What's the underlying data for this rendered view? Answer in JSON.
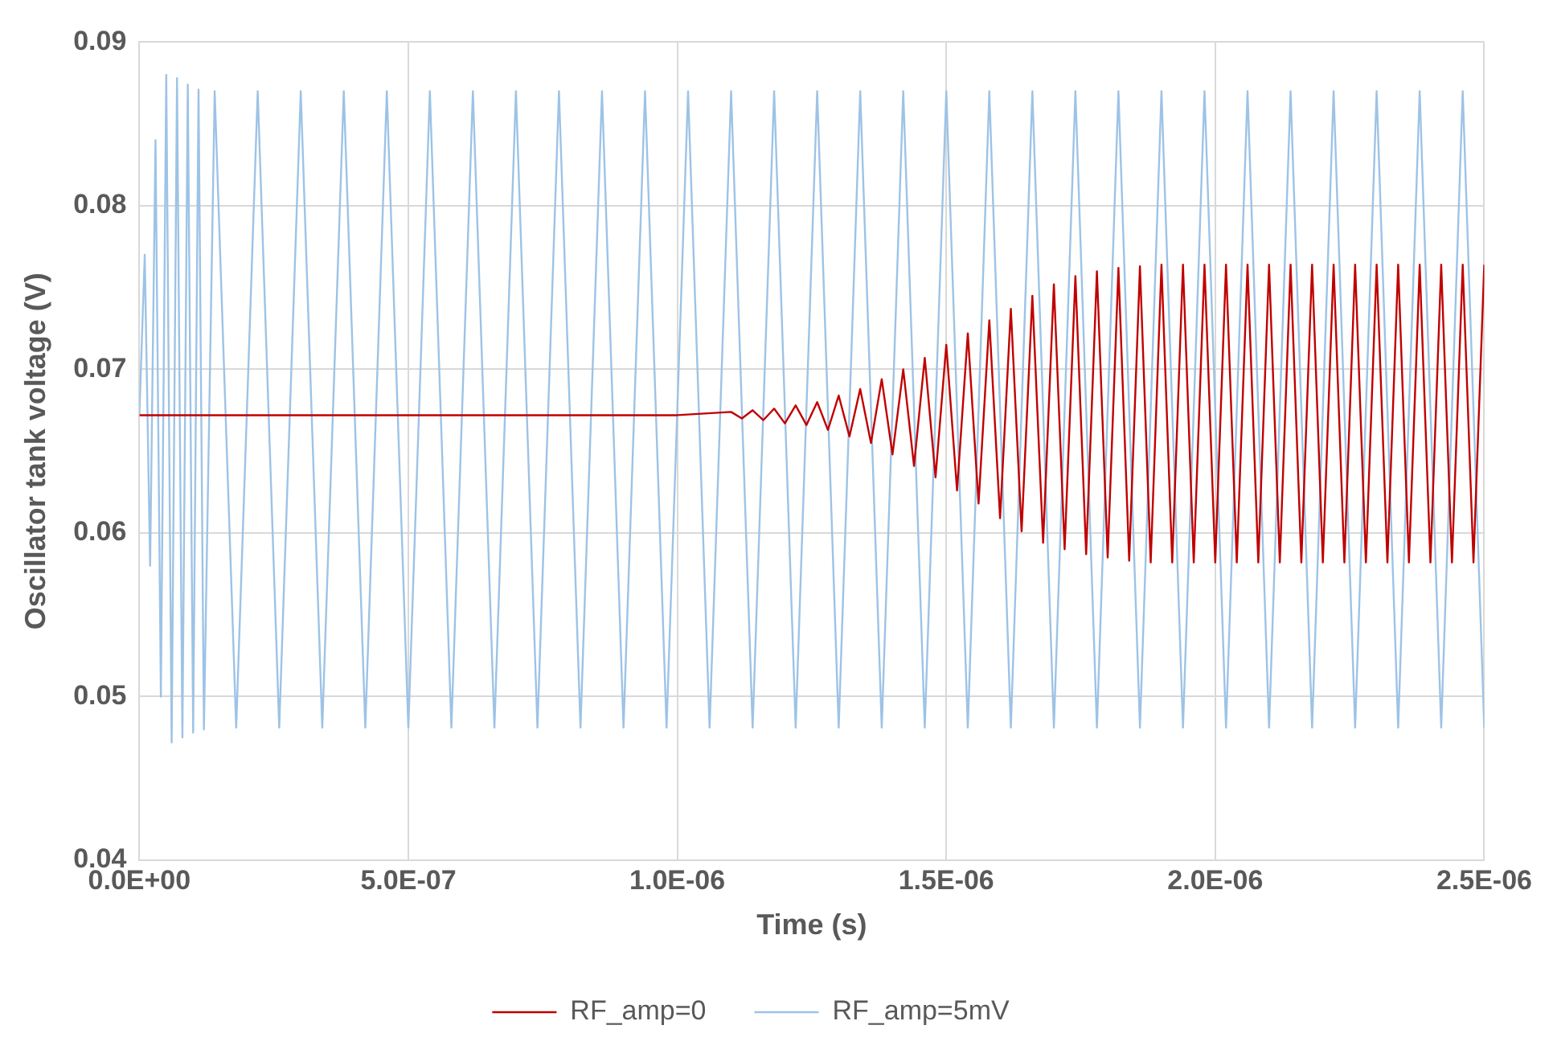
{
  "chart_data": {
    "type": "line",
    "xlabel": "Time (s)",
    "ylabel": "Oscillator tank voltage (V)",
    "xlim": [
      0,
      2.5e-06
    ],
    "xticks": [
      {
        "value": 0,
        "label": "0.0E+00"
      },
      {
        "value": 5e-07,
        "label": "5.0E-07"
      },
      {
        "value": 1e-06,
        "label": "1.0E-06"
      },
      {
        "value": 1.5e-06,
        "label": "1.5E-06"
      },
      {
        "value": 2e-06,
        "label": "2.0E-06"
      },
      {
        "value": 2.5e-06,
        "label": "2.5E-06"
      }
    ],
    "ylim": [
      0.04,
      0.09
    ],
    "yticks": [
      0.04,
      0.05,
      0.06,
      0.07,
      0.08,
      0.09
    ],
    "grid": true,
    "legend": "bottom",
    "marker": "none",
    "series": [
      {
        "name": "RF_amp=0",
        "color": "#c00000",
        "x": [
          0,
          1e-06,
          1.1e-06,
          1.12e-06,
          1.14e-06,
          1.16e-06,
          1.18e-06,
          1.2e-06,
          1.22e-06,
          1.24e-06,
          1.26e-06,
          1.28e-06,
          1.3e-06,
          1.32e-06,
          1.34e-06,
          1.36e-06,
          1.38e-06,
          1.4e-06,
          1.42e-06,
          1.44e-06,
          1.46e-06,
          1.48e-06,
          1.5e-06,
          1.52e-06,
          1.54e-06,
          1.56e-06,
          1.58e-06,
          1.6e-06,
          1.62e-06,
          1.64e-06,
          1.66e-06,
          1.68e-06,
          1.7e-06,
          1.72e-06,
          1.74e-06,
          1.76e-06,
          1.78e-06,
          1.8e-06,
          1.82e-06,
          1.84e-06,
          1.86e-06,
          1.88e-06,
          1.9e-06,
          1.92e-06,
          1.94e-06,
          1.96e-06,
          1.98e-06,
          2e-06,
          2.02e-06,
          2.04e-06,
          2.06e-06,
          2.08e-06,
          2.1e-06,
          2.12e-06,
          2.14e-06,
          2.16e-06,
          2.18e-06,
          2.2e-06,
          2.22e-06,
          2.24e-06,
          2.26e-06,
          2.28e-06,
          2.3e-06,
          2.32e-06,
          2.34e-06,
          2.36e-06,
          2.38e-06,
          2.4e-06,
          2.42e-06,
          2.44e-06,
          2.46e-06,
          2.48e-06,
          2.5e-06
        ],
        "values": [
          0.0672,
          0.0672,
          0.0674,
          0.067,
          0.0675,
          0.0669,
          0.0676,
          0.0667,
          0.0678,
          0.0666,
          0.068,
          0.0663,
          0.0684,
          0.0659,
          0.0688,
          0.0655,
          0.0694,
          0.0648,
          0.07,
          0.0641,
          0.0707,
          0.0634,
          0.0715,
          0.0626,
          0.0722,
          0.0618,
          0.073,
          0.0609,
          0.0737,
          0.0601,
          0.0745,
          0.0594,
          0.0752,
          0.059,
          0.0757,
          0.0587,
          0.076,
          0.0585,
          0.0762,
          0.0583,
          0.0763,
          0.0582,
          0.0764,
          0.0582,
          0.0764,
          0.0582,
          0.0764,
          0.0582,
          0.0764,
          0.0582,
          0.0764,
          0.0582,
          0.0764,
          0.0582,
          0.0764,
          0.0582,
          0.0764,
          0.0582,
          0.0764,
          0.0582,
          0.0764,
          0.0582,
          0.0764,
          0.0582,
          0.0764,
          0.0582,
          0.0764,
          0.0582,
          0.0764,
          0.0582,
          0.0764,
          0.0582,
          0.0764
        ]
      },
      {
        "name": "RF_amp=5mV",
        "color": "#9dc3e6",
        "x": [
          0,
          1e-08,
          2e-08,
          3e-08,
          4e-08,
          5e-08,
          6e-08,
          7e-08,
          8e-08,
          9e-08,
          1e-07,
          1.1e-07,
          1.2e-07,
          1.4e-07,
          1.8e-07,
          2.2e-07,
          2.6e-07,
          3e-07,
          3.4e-07,
          3.8e-07,
          4.2e-07,
          4.6e-07,
          5e-07,
          5.4e-07,
          5.8e-07,
          6.2e-07,
          6.6e-07,
          7e-07,
          7.4e-07,
          7.8e-07,
          8.2e-07,
          8.6e-07,
          9e-07,
          9.4e-07,
          9.8e-07,
          1.02e-06,
          1.06e-06,
          1.1e-06,
          1.14e-06,
          1.18e-06,
          1.22e-06,
          1.26e-06,
          1.3e-06,
          1.34e-06,
          1.38e-06,
          1.42e-06,
          1.46e-06,
          1.5e-06,
          1.54e-06,
          1.58e-06,
          1.62e-06,
          1.66e-06,
          1.7e-06,
          1.74e-06,
          1.78e-06,
          1.82e-06,
          1.86e-06,
          1.9e-06,
          1.94e-06,
          1.98e-06,
          2.02e-06,
          2.06e-06,
          2.1e-06,
          2.14e-06,
          2.18e-06,
          2.22e-06,
          2.26e-06,
          2.3e-06,
          2.34e-06,
          2.38e-06,
          2.42e-06,
          2.46e-06,
          2.5e-06
        ],
        "values": [
          0.0672,
          0.077,
          0.058,
          0.084,
          0.05,
          0.088,
          0.0472,
          0.0878,
          0.0475,
          0.0874,
          0.0478,
          0.0871,
          0.048,
          0.087,
          0.0481,
          0.087,
          0.0481,
          0.087,
          0.0481,
          0.087,
          0.0481,
          0.087,
          0.0481,
          0.087,
          0.0481,
          0.087,
          0.0481,
          0.087,
          0.0481,
          0.087,
          0.0481,
          0.087,
          0.0481,
          0.087,
          0.0481,
          0.087,
          0.0481,
          0.087,
          0.0481,
          0.087,
          0.0481,
          0.087,
          0.0481,
          0.087,
          0.0481,
          0.087,
          0.0481,
          0.087,
          0.0481,
          0.087,
          0.0481,
          0.087,
          0.0481,
          0.087,
          0.0481,
          0.087,
          0.0481,
          0.087,
          0.0481,
          0.087,
          0.0481,
          0.087,
          0.0481,
          0.087,
          0.0481,
          0.087,
          0.0481,
          0.087,
          0.0481,
          0.087,
          0.0481,
          0.087,
          0.0481
        ]
      }
    ]
  }
}
